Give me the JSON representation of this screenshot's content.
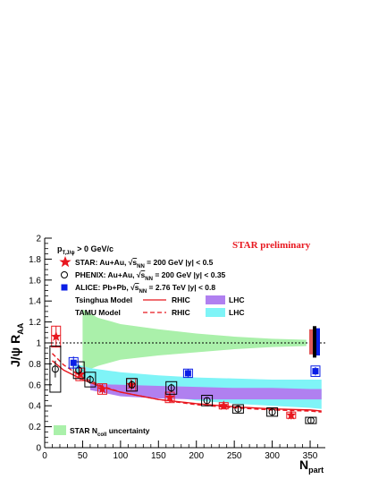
{
  "chart_data": {
    "type": "scatter",
    "xlabel_main": "N",
    "xlabel_sub": "part",
    "ylabel_main": "J/ψ R",
    "ylabel_sub": "AA",
    "xlim": [
      0,
      370
    ],
    "ylim": [
      0,
      2
    ],
    "x_ticks": [
      0,
      50,
      100,
      150,
      200,
      250,
      300,
      350
    ],
    "y_ticks": [
      0,
      0.2,
      0.4,
      0.6,
      0.8,
      1,
      1.2,
      1.4,
      1.6,
      1.8,
      2
    ],
    "x_tick_labels": [
      "0",
      "50",
      "100",
      "150",
      "200",
      "250",
      "300",
      "350"
    ],
    "y_tick_labels": [
      "0",
      "0.2",
      "0.4",
      "0.6",
      "0.8",
      "1",
      "1.2",
      "1.4",
      "1.6",
      "1.8",
      "2"
    ],
    "reference_line_y": 1,
    "pt_cut": {
      "main": "p",
      "sub": "T,J/ψ",
      "tail": " > 0 GeV/c"
    },
    "watermark": "STAR preliminary",
    "legend": {
      "star": {
        "pre": "STAR: Au+Au, ",
        "sqrt": "s",
        "sub": "NN",
        "post": " = 200 GeV |y| < 0.5"
      },
      "phenix": {
        "pre": "PHENIX: Au+Au, ",
        "sqrt": "s",
        "sub": "NN",
        "post": " = 200 GeV |y| < 0.35"
      },
      "alice": {
        "pre": "ALICE: Pb+Pb, ",
        "sqrt": "s",
        "sub": "NN",
        "post": " = 2.76 TeV |y| < 0.8"
      },
      "tsinghua": "Tsinghua Model",
      "tamu": "TAMU Model",
      "rhic": "RHIC",
      "lhc": "LHC",
      "ncoll": "STAR N",
      "ncoll_sub": "coll",
      "ncoll_tail": " uncertainty"
    },
    "colors": {
      "star": "#e8171f",
      "phenix": "#000000",
      "alice": "#0a1ee6",
      "tsinghua_lhc": "#b080f0",
      "tamu_lhc": "#7ff4f7",
      "ncoll_band": "#aaf0aa"
    },
    "series": [
      {
        "name": "STAR: Au+Au",
        "marker": "star",
        "points": [
          {
            "x": 15,
            "y": 1.06,
            "err": 0.1,
            "sys": 0.1
          },
          {
            "x": 47,
            "y": 0.7,
            "err": 0.06,
            "sys": 0.06
          },
          {
            "x": 76,
            "y": 0.56,
            "err": 0.05,
            "sys": 0.05
          },
          {
            "x": 114,
            "y": 0.6,
            "err": 0.05,
            "sys": 0.06
          },
          {
            "x": 165,
            "y": 0.48,
            "err": 0.05,
            "sys": 0.05
          },
          {
            "x": 236,
            "y": 0.4,
            "err": 0.03,
            "sys": 0.03
          },
          {
            "x": 325,
            "y": 0.31,
            "err": 0.04,
            "sys": 0.03
          }
        ]
      },
      {
        "name": "PHENIX: Au+Au",
        "marker": "open-circle",
        "points": [
          {
            "x": 14,
            "y": 0.75,
            "err": 0.08,
            "sys": 0.22
          },
          {
            "x": 45,
            "y": 0.74,
            "err": 0.05,
            "sys": 0.08
          },
          {
            "x": 60,
            "y": 0.65,
            "err": 0.04,
            "sys": 0.07
          },
          {
            "x": 115,
            "y": 0.6,
            "err": 0.04,
            "sys": 0.06
          },
          {
            "x": 167,
            "y": 0.57,
            "err": 0.04,
            "sys": 0.06
          },
          {
            "x": 214,
            "y": 0.45,
            "err": 0.03,
            "sys": 0.05
          },
          {
            "x": 255,
            "y": 0.37,
            "err": 0.03,
            "sys": 0.04
          },
          {
            "x": 300,
            "y": 0.34,
            "err": 0.03,
            "sys": 0.04
          },
          {
            "x": 351,
            "y": 0.26,
            "err": 0.03,
            "sys": 0.03
          }
        ]
      },
      {
        "name": "ALICE: Pb+Pb",
        "marker": "filled-square",
        "points": [
          {
            "x": 38,
            "y": 0.81,
            "err": 0.06,
            "sys": 0.05
          },
          {
            "x": 189,
            "y": 0.71,
            "err": 0.04,
            "sys": 0.04
          },
          {
            "x": 357,
            "y": 0.73,
            "err": 0.04,
            "sys": 0.05
          }
        ]
      }
    ],
    "tsinghua_rhic": [
      [
        10,
        0.83
      ],
      [
        25,
        0.74
      ],
      [
        50,
        0.65
      ],
      [
        75,
        0.58
      ],
      [
        100,
        0.53
      ],
      [
        150,
        0.46
      ],
      [
        200,
        0.42
      ],
      [
        250,
        0.39
      ],
      [
        300,
        0.37
      ],
      [
        350,
        0.36
      ],
      [
        365,
        0.35
      ]
    ],
    "tamu_rhic": [
      [
        10,
        0.9
      ],
      [
        25,
        0.79
      ],
      [
        50,
        0.67
      ],
      [
        75,
        0.59
      ],
      [
        100,
        0.53
      ],
      [
        150,
        0.46
      ],
      [
        200,
        0.41
      ],
      [
        250,
        0.38
      ],
      [
        300,
        0.36
      ],
      [
        350,
        0.35
      ],
      [
        365,
        0.34
      ]
    ],
    "tsinghua_lhc": [
      [
        60,
        0.55,
        0.61
      ],
      [
        100,
        0.49,
        0.6
      ],
      [
        150,
        0.47,
        0.59
      ],
      [
        200,
        0.46,
        0.58
      ],
      [
        250,
        0.46,
        0.57
      ],
      [
        300,
        0.46,
        0.57
      ],
      [
        350,
        0.46,
        0.56
      ],
      [
        365,
        0.46,
        0.56
      ]
    ],
    "tamu_lhc": [
      [
        40,
        0.72,
        0.8
      ],
      [
        60,
        0.62,
        0.76
      ],
      [
        100,
        0.55,
        0.72
      ],
      [
        150,
        0.5,
        0.69
      ],
      [
        200,
        0.45,
        0.67
      ],
      [
        250,
        0.42,
        0.66
      ],
      [
        300,
        0.4,
        0.65
      ],
      [
        350,
        0.38,
        0.65
      ],
      [
        365,
        0.37,
        0.65
      ]
    ],
    "ncoll_band": [
      [
        50,
        1.32,
        0.72
      ],
      [
        70,
        1.24,
        0.78
      ],
      [
        100,
        1.18,
        0.84
      ],
      [
        150,
        1.13,
        0.88
      ],
      [
        200,
        1.09,
        0.91
      ],
      [
        250,
        1.06,
        0.94
      ],
      [
        300,
        1.04,
        0.96
      ],
      [
        345,
        1.03,
        0.97
      ]
    ],
    "global_uncertainties": [
      {
        "color": "#e05a5a",
        "lo": 0.89,
        "hi": 1.13
      },
      {
        "color": "#000000",
        "lo": 0.86,
        "hi": 1.16
      },
      {
        "color": "#0a1ee6",
        "lo": 0.88,
        "hi": 1.14
      }
    ]
  }
}
